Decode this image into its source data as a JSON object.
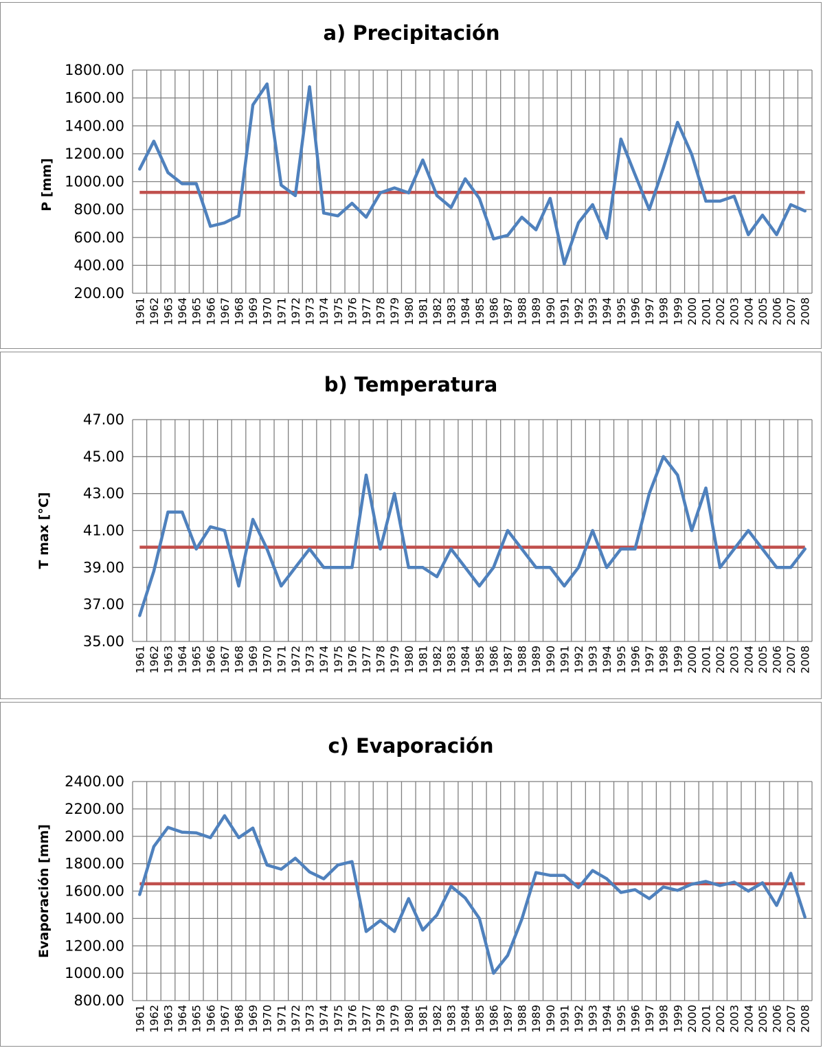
{
  "colors": {
    "series": "#4f81bd",
    "mean": "#c0504d",
    "grid": "#7f7f7f"
  },
  "charts": [
    {
      "id": "a",
      "title": "a) Precipitación",
      "ylabel": "P [mm]",
      "chart_data": {
        "type": "line",
        "ylim": [
          200,
          1800
        ],
        "ytick_step": 200,
        "ytick_labels": [
          "200.00",
          "400.00",
          "600.00",
          "800.00",
          "1000.00",
          "1200.00",
          "1400.00",
          "1600.00",
          "1800.00"
        ],
        "grid": true,
        "x": [
          "1961",
          "1962",
          "1963",
          "1964",
          "1965",
          "1966",
          "1967",
          "1968",
          "1969",
          "1970",
          "1971",
          "1972",
          "1973",
          "1974",
          "1975",
          "1976",
          "1977",
          "1978",
          "1979",
          "1980",
          "1981",
          "1982",
          "1983",
          "1984",
          "1985",
          "1986",
          "1987",
          "1988",
          "1989",
          "1990",
          "1991",
          "1992",
          "1993",
          "1994",
          "1995",
          "1996",
          "1997",
          "1998",
          "1999",
          "2000",
          "2001",
          "2002",
          "2003",
          "2004",
          "2005",
          "2006",
          "2007",
          "2008"
        ],
        "series": [
          {
            "role": "data",
            "values": [
              1090,
              1290,
              1065,
              985,
              985,
              680,
              705,
              755,
              1550,
              1700,
              975,
              900,
              1680,
              775,
              755,
              845,
              745,
              920,
              955,
              920,
              1155,
              900,
              815,
              1020,
              880,
              590,
              615,
              745,
              655,
              880,
              410,
              705,
              835,
              595,
              1305,
              1050,
              800,
              1100,
              1425,
              1195,
              860,
              860,
              895,
              620,
              760,
              620,
              835,
              790
            ]
          },
          {
            "role": "mean",
            "value": 923
          }
        ]
      }
    },
    {
      "id": "b",
      "title": "b) Temperatura",
      "ylabel": "T max [°C]",
      "chart_data": {
        "type": "line",
        "ylim": [
          35,
          47
        ],
        "ytick_step": 2,
        "ytick_labels": [
          "35.00",
          "37.00",
          "39.00",
          "41.00",
          "43.00",
          "45.00",
          "47.00"
        ],
        "grid": true,
        "x": [
          "1961",
          "1962",
          "1963",
          "1964",
          "1965",
          "1966",
          "1967",
          "1968",
          "1969",
          "1970",
          "1971",
          "1972",
          "1973",
          "1974",
          "1975",
          "1976",
          "1977",
          "1978",
          "1979",
          "1980",
          "1981",
          "1982",
          "1983",
          "1984",
          "1985",
          "1986",
          "1987",
          "1988",
          "1989",
          "1990",
          "1991",
          "1992",
          "1993",
          "1994",
          "1995",
          "1996",
          "1997",
          "1998",
          "1999",
          "2000",
          "2001",
          "2002",
          "2003",
          "2004",
          "2005",
          "2006",
          "2007",
          "2008"
        ],
        "series": [
          {
            "role": "data",
            "values": [
              36.4,
              38.8,
              42,
              42,
              40,
              41.2,
              41,
              38,
              41.6,
              40,
              38,
              39,
              40,
              39,
              39,
              39,
              44,
              40,
              43,
              39,
              39,
              38.5,
              40,
              39,
              38,
              39,
              41,
              40,
              39,
              39,
              38,
              39,
              41,
              39,
              40,
              40,
              43,
              45,
              44,
              41,
              43.3,
              39,
              40,
              41,
              40,
              39,
              39,
              40
            ]
          },
          {
            "role": "mean",
            "value": 40.1
          }
        ]
      }
    },
    {
      "id": "c",
      "title": "c) Evaporación",
      "ylabel": "Evaporación [mm]",
      "chart_data": {
        "type": "line",
        "ylim": [
          800,
          2400
        ],
        "ytick_step": 200,
        "ytick_labels": [
          "800.00",
          "1000.00",
          "1200.00",
          "1400.00",
          "1600.00",
          "1800.00",
          "2000.00",
          "2200.00",
          "2400.00"
        ],
        "grid": true,
        "x": [
          "1961",
          "1962",
          "1963",
          "1964",
          "1965",
          "1966",
          "1967",
          "1968",
          "1969",
          "1970",
          "1971",
          "1972",
          "1973",
          "1974",
          "1975",
          "1976",
          "1977",
          "1978",
          "1979",
          "1980",
          "1981",
          "1982",
          "1983",
          "1984",
          "1985",
          "1986",
          "1987",
          "1988",
          "1989",
          "1990",
          "1991",
          "1992",
          "1993",
          "1994",
          "1995",
          "1996",
          "1997",
          "1998",
          "1999",
          "2000",
          "2001",
          "2002",
          "2003",
          "2004",
          "2005",
          "2006",
          "2007",
          "2008"
        ],
        "series": [
          {
            "role": "data",
            "values": [
              1575,
              1925,
              2065,
              2030,
              2025,
              1990,
              2150,
              1990,
              2060,
              1790,
              1760,
              1840,
              1740,
              1690,
              1790,
              1815,
              1305,
              1385,
              1305,
              1545,
              1315,
              1425,
              1635,
              1550,
              1400,
              1000,
              1130,
              1395,
              1735,
              1715,
              1715,
              1625,
              1750,
              1690,
              1590,
              1610,
              1545,
              1630,
              1605,
              1650,
              1670,
              1640,
              1665,
              1600,
              1660,
              1495,
              1730,
              1410
            ]
          },
          {
            "role": "mean",
            "value": 1653
          }
        ]
      }
    }
  ]
}
